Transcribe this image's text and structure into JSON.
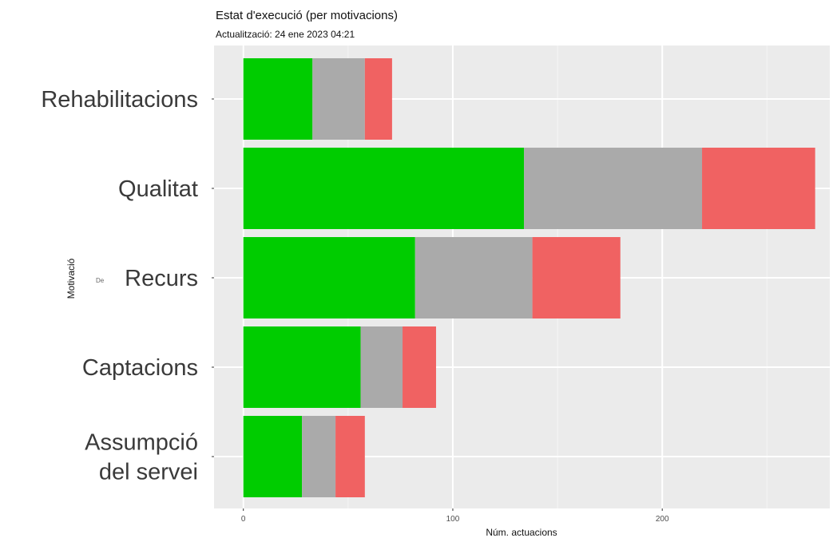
{
  "title": "Estat d'execució (per motivacions)",
  "subtitle": "Actualització: 24 ene 2023 04:21",
  "chart_data": {
    "type": "bar",
    "orientation": "horizontal",
    "stacked": true,
    "categories": [
      "Rehabilitacions",
      "Qualitat",
      "Recurs",
      "Captacions",
      "Assumpció del servei"
    ],
    "category_lines": [
      [
        "Rehabilitacions"
      ],
      [
        "Qualitat"
      ],
      [
        "Recurs"
      ],
      [
        "Captacions"
      ],
      [
        "Assumpció",
        "del servei"
      ]
    ],
    "series": [
      {
        "color": "#00cc00",
        "values": [
          33,
          134,
          82,
          56,
          28
        ]
      },
      {
        "color": "#aaaaaa",
        "values": [
          25,
          85,
          56,
          20,
          16
        ]
      },
      {
        "color": "#f06262",
        "values": [
          13,
          54,
          42,
          16,
          14
        ]
      }
    ],
    "xlabel": "Núm. actuacions",
    "ylabel": "Motivació",
    "xticks": [
      0,
      100,
      200
    ],
    "xlim": [
      -14,
      280
    ],
    "grid": true,
    "stray_text": "De"
  }
}
